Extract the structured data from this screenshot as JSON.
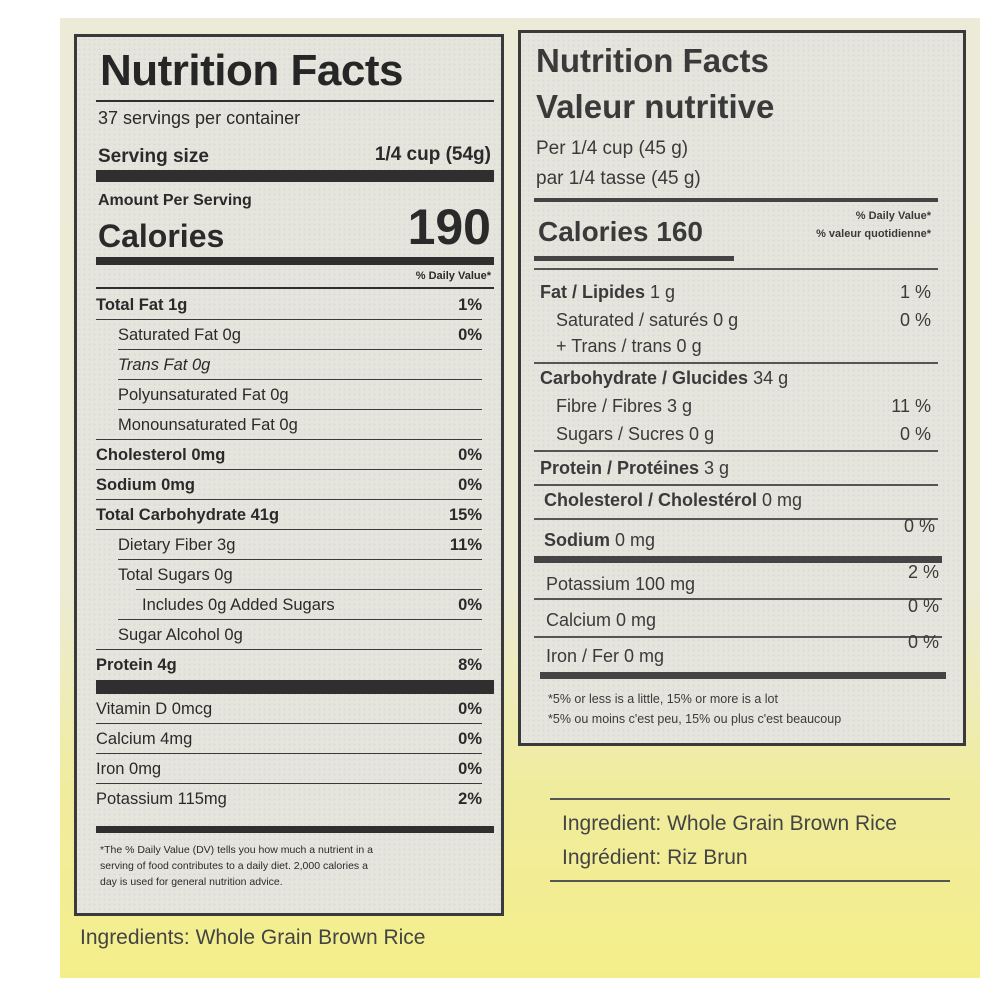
{
  "us_label": {
    "title": "Nutrition Facts",
    "servings": "37 servings per container",
    "serving_size_label": "Serving size",
    "serving_size_value": "1/4 cup (54g)",
    "amount_per_serving": "Amount Per Serving",
    "calories_label": "Calories",
    "calories_value": "190",
    "dv_header": "% Daily Value*",
    "nutrients": [
      {
        "label": "Total Fat 1g",
        "pct": "1%"
      },
      {
        "label": "Saturated Fat 0g",
        "pct": "0%"
      },
      {
        "label": "Trans Fat 0g",
        "pct": ""
      },
      {
        "label": "Polyunsaturated Fat 0g",
        "pct": ""
      },
      {
        "label": "Monounsaturated Fat 0g",
        "pct": ""
      },
      {
        "label": "Cholesterol 0mg",
        "pct": "0%"
      },
      {
        "label": "Sodium 0mg",
        "pct": "0%"
      },
      {
        "label": "Total Carbohydrate 41g",
        "pct": "15%"
      },
      {
        "label": "Dietary Fiber 3g",
        "pct": "11%"
      },
      {
        "label": "Total Sugars 0g",
        "pct": ""
      },
      {
        "label": "Includes 0g Added Sugars",
        "pct": "0%"
      },
      {
        "label": "Sugar Alcohol 0g",
        "pct": ""
      },
      {
        "label": "Protein 4g",
        "pct": "8%"
      }
    ],
    "vitamins": [
      {
        "label": "Vitamin D 0mcg",
        "pct": "0%"
      },
      {
        "label": "Calcium 4mg",
        "pct": "0%"
      },
      {
        "label": "Iron 0mg",
        "pct": "0%"
      },
      {
        "label": "Potassium 115mg",
        "pct": "2%"
      }
    ],
    "footnote_1": "*The % Daily Value (DV) tells you how much a nutrient in a",
    "footnote_2": "serving of food contributes to a daily diet. 2,000 calories a",
    "footnote_3": "day is used for general nutrition advice."
  },
  "ca_label": {
    "title_en": "Nutrition Facts",
    "title_fr": "Valeur nutritive",
    "per_en": "Per 1/4 cup (45 g)",
    "per_fr": "par 1/4 tasse (45 g)",
    "calories": "Calories 160",
    "dv_en": "% Daily Value*",
    "dv_fr": "% valeur quotidienne*",
    "fat": {
      "label": "Fat / Lipides 1 g",
      "pct": "1 %"
    },
    "saturated": {
      "label": "Saturated / saturés 0 g",
      "pct": "0 %"
    },
    "trans": {
      "label": "+ Trans / trans 0 g"
    },
    "carb": {
      "label": "Carbohydrate / Glucides 34 g"
    },
    "fibre": {
      "label": "Fibre / Fibres 3 g",
      "pct": "11 %"
    },
    "sugars": {
      "label": "Sugars / Sucres 0 g",
      "pct": "0 %"
    },
    "protein": {
      "label": "Protein / Protéines 3 g"
    },
    "cholesterol": {
      "label": "Cholesterol / Cholestérol 0 mg"
    },
    "sodium": {
      "label": "Sodium 0 mg",
      "pct": "0 %"
    },
    "potassium": {
      "label": "Potassium 100 mg",
      "pct": "2 %"
    },
    "calcium": {
      "label": "Calcium 0 mg",
      "pct": "0 %"
    },
    "iron": {
      "label": "Iron / Fer 0 mg",
      "pct": "0 %"
    },
    "footnote_en": "*5% or less is a little, 15% or more is a lot",
    "footnote_fr": "*5% ou moins c'est peu, 15% ou plus c'est beaucoup"
  },
  "ingredients_ca_en": "Ingredient: Whole Grain Brown Rice",
  "ingredients_ca_fr": "Ingrédient: Riz Brun",
  "ingredients_us": "Ingredients:  Whole Grain Brown Rice"
}
